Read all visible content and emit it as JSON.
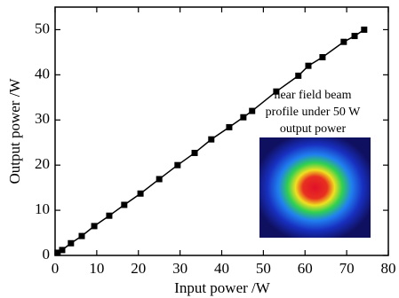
{
  "chart_data": {
    "type": "line",
    "xlabel": "Input power /W",
    "ylabel": "Output power /W",
    "annotation": [
      "near field beam",
      "profile under 50 W",
      "output power"
    ],
    "x": [
      0.6,
      1.7,
      3.8,
      6.4,
      9.4,
      13,
      16.6,
      20.5,
      25,
      29.4,
      33.5,
      37.5,
      41.8,
      45.2,
      47.3,
      53.1,
      58.4,
      60.8,
      64.2,
      69.3,
      71.9,
      74.2
    ],
    "series": [
      {
        "color": "#000000",
        "values": [
          0.6,
          1.2,
          2.7,
          4.3,
          6.5,
          8.8,
          11.2,
          13.7,
          16.9,
          20,
          22.7,
          25.7,
          28.4,
          30.6,
          32,
          36.3,
          39.8,
          42,
          43.9,
          47.3,
          48.6,
          50
        ]
      }
    ],
    "xlim": [
      0,
      80
    ],
    "xticks": [
      0,
      10,
      20,
      30,
      40,
      50,
      60,
      70,
      80
    ],
    "ylim": [
      0,
      55
    ],
    "yticks": [
      0,
      10,
      20,
      30,
      40,
      50
    ]
  }
}
